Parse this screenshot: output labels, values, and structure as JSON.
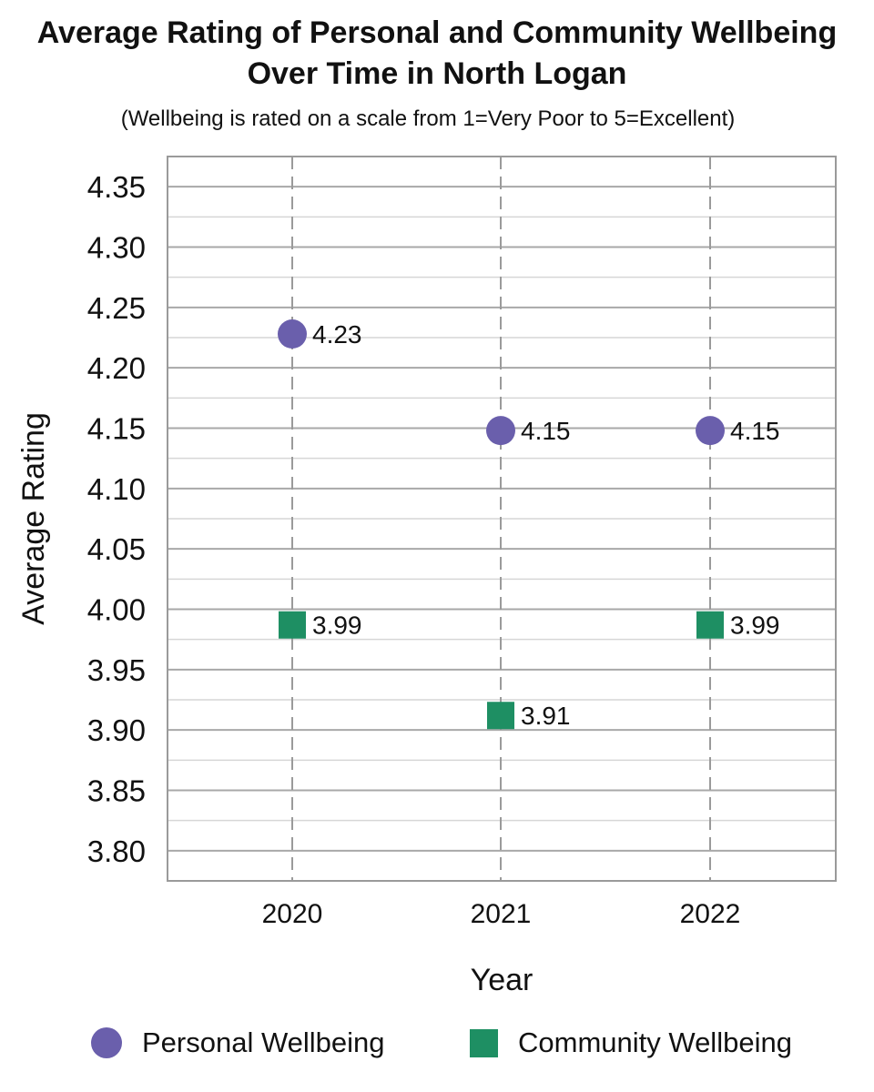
{
  "chart_data": {
    "type": "scatter",
    "title": "Average Rating of Personal and Community Wellbeing Over Time in North Logan",
    "title_lines": [
      "Average Rating of Personal and Community Wellbeing",
      "Over Time in North Logan"
    ],
    "subtitle": "(Wellbeing is rated on a scale from 1=Very Poor to 5=Excellent)",
    "xlabel": "Year",
    "ylabel": "Average Rating",
    "categories": [
      "2020",
      "2021",
      "2022"
    ],
    "ylim": [
      3.775,
      4.375
    ],
    "y_ticks": [
      "3.80",
      "3.85",
      "3.90",
      "3.95",
      "4.00",
      "4.05",
      "4.10",
      "4.15",
      "4.20",
      "4.25",
      "4.30",
      "4.35"
    ],
    "grid": true,
    "legend_position": "bottom",
    "series": [
      {
        "name": "Personal Wellbeing",
        "marker": "circle",
        "color": "#6a5fac",
        "values": [
          4.228,
          4.148,
          4.148
        ],
        "labels": [
          "4.23",
          "4.15",
          "4.15"
        ]
      },
      {
        "name": "Community Wellbeing",
        "marker": "square",
        "color": "#1e8f63",
        "values": [
          3.987,
          3.912,
          3.987
        ],
        "labels": [
          "3.99",
          "3.91",
          "3.99"
        ]
      }
    ]
  }
}
